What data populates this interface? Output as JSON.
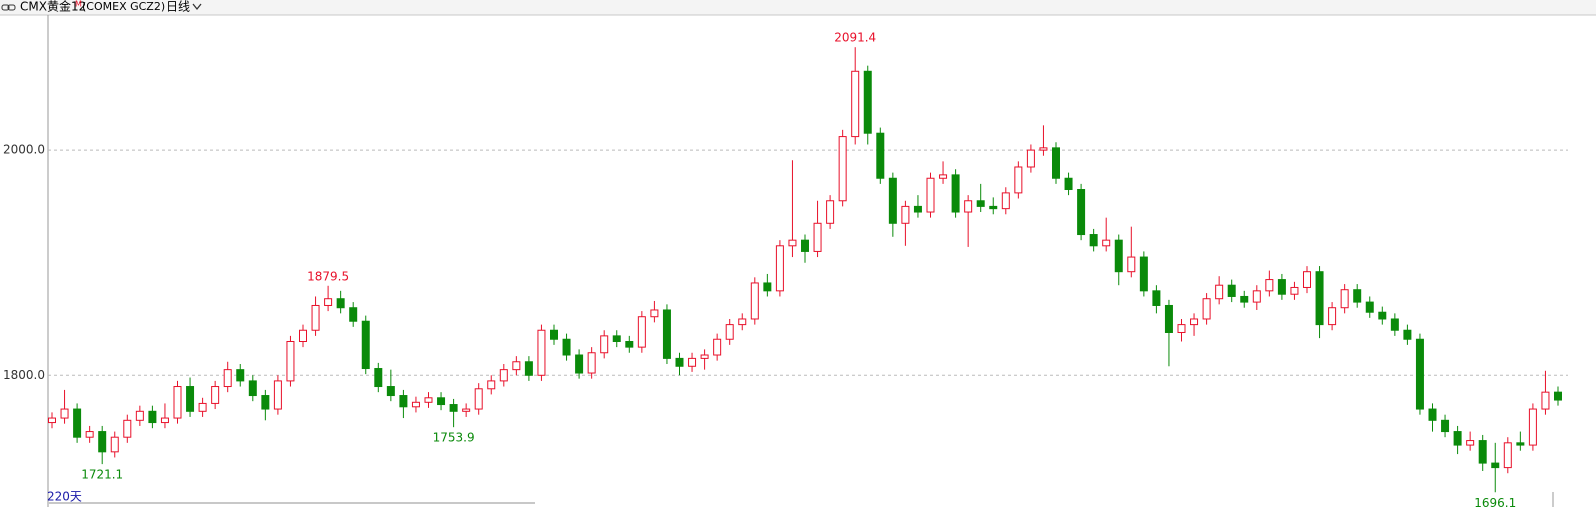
{
  "chart_data": {
    "type": "candlestick",
    "title": "CMX黄金12",
    "title_superscript": "M",
    "subtitle": "(COMEX GCZ2)",
    "period": "日线",
    "window_label": "220天",
    "up_color": "#e8102a",
    "down_color": "#0a8a0a",
    "grid": true,
    "ylim": [
      1683,
      2120
    ],
    "yticks": [
      {
        "value": 1800,
        "label": "1800.0"
      },
      {
        "value": 2000,
        "label": "2000.0"
      }
    ],
    "open": [
      1758,
      1762,
      1770,
      1745,
      1750,
      1732,
      1745,
      1760,
      1768,
      1758,
      1762,
      1790,
      1768,
      1775,
      1790,
      1805,
      1795,
      1782,
      1770,
      1795,
      1830,
      1840,
      1862,
      1868,
      1860,
      1848,
      1806,
      1790,
      1782,
      1772,
      1776,
      1780,
      1774,
      1768,
      1770,
      1788,
      1795,
      1805,
      1812,
      1800,
      1840,
      1832,
      1818,
      1802,
      1820,
      1835,
      1830,
      1825,
      1852,
      1858,
      1815,
      1808,
      1815,
      1818,
      1832,
      1845,
      1850,
      1882,
      1875,
      1915,
      1920,
      1910,
      1935,
      1955,
      2012,
      2070,
      2015,
      1975,
      1935,
      1950,
      1945,
      1975,
      1978,
      1945,
      1955,
      1950,
      1948,
      1962,
      1985,
      2000,
      2002,
      1975,
      1965,
      1925,
      1915,
      1920,
      1892,
      1905,
      1875,
      1862,
      1838,
      1845,
      1850,
      1868,
      1880,
      1870,
      1865,
      1875,
      1885,
      1872,
      1878,
      1892,
      1845,
      1860,
      1876,
      1865,
      1856,
      1850,
      1840,
      1832,
      1770,
      1760,
      1750,
      1738,
      1742,
      1722,
      1718,
      1740,
      1738,
      1770,
      1785
    ],
    "high": [
      1767,
      1787,
      1775,
      1755,
      1755,
      1750,
      1765,
      1773,
      1773,
      1775,
      1795,
      1798,
      1780,
      1795,
      1812,
      1810,
      1800,
      1787,
      1800,
      1835,
      1845,
      1870,
      1879.5,
      1875,
      1865,
      1853,
      1811,
      1805,
      1787,
      1781,
      1785,
      1785,
      1779,
      1775,
      1793,
      1800,
      1810,
      1817,
      1817,
      1845,
      1845,
      1837,
      1823,
      1825,
      1840,
      1840,
      1835,
      1857,
      1866,
      1863,
      1820,
      1820,
      1823,
      1837,
      1850,
      1855,
      1887,
      1890,
      1920,
      1991,
      1925,
      1955,
      1960,
      2018,
      2091.4,
      2075,
      2020,
      1980,
      1955,
      1960,
      1980,
      1990,
      1983,
      1960,
      1970,
      1958,
      1967,
      1990,
      2005,
      2022,
      2007,
      1980,
      1970,
      1930,
      1940,
      1925,
      1932,
      1910,
      1880,
      1867,
      1850,
      1855,
      1873,
      1888,
      1885,
      1875,
      1880,
      1893,
      1890,
      1883,
      1897,
      1897,
      1865,
      1881,
      1881,
      1870,
      1861,
      1855,
      1845,
      1837,
      1775,
      1765,
      1755,
      1750,
      1747,
      1740,
      1745,
      1750,
      1775,
      1804,
      1790
    ],
    "low": [
      1753,
      1757,
      1740,
      1740,
      1721.1,
      1727,
      1740,
      1755,
      1753,
      1753,
      1757,
      1763,
      1763,
      1770,
      1785,
      1790,
      1777,
      1760,
      1765,
      1790,
      1825,
      1835,
      1857,
      1855,
      1843,
      1801,
      1785,
      1777,
      1762,
      1767,
      1771,
      1769,
      1753.9,
      1763,
      1765,
      1783,
      1790,
      1800,
      1795,
      1795,
      1827,
      1813,
      1797,
      1797,
      1815,
      1825,
      1820,
      1820,
      1847,
      1810,
      1800,
      1803,
      1805,
      1813,
      1827,
      1840,
      1845,
      1870,
      1870,
      1905,
      1900,
      1905,
      1930,
      1950,
      2005,
      2005,
      1970,
      1923,
      1915,
      1940,
      1940,
      1970,
      1940,
      1914,
      1945,
      1943,
      1943,
      1957,
      1980,
      1995,
      1970,
      1960,
      1920,
      1910,
      1910,
      1880,
      1887,
      1870,
      1855,
      1808,
      1830,
      1835,
      1845,
      1863,
      1865,
      1860,
      1858,
      1870,
      1867,
      1867,
      1873,
      1833,
      1840,
      1855,
      1860,
      1851,
      1845,
      1835,
      1827,
      1765,
      1750,
      1745,
      1730,
      1733,
      1715,
      1696.1,
      1713,
      1733,
      1733,
      1765,
      1773
    ],
    "close": [
      1762,
      1770,
      1745,
      1750,
      1732,
      1745,
      1760,
      1768,
      1758,
      1762,
      1790,
      1768,
      1775,
      1790,
      1805,
      1795,
      1782,
      1770,
      1795,
      1830,
      1840,
      1862,
      1868,
      1860,
      1848,
      1806,
      1790,
      1782,
      1772,
      1776,
      1780,
      1774,
      1768,
      1770,
      1788,
      1795,
      1805,
      1812,
      1800,
      1840,
      1832,
      1818,
      1802,
      1820,
      1835,
      1830,
      1825,
      1852,
      1858,
      1815,
      1808,
      1815,
      1818,
      1832,
      1845,
      1850,
      1882,
      1875,
      1915,
      1920,
      1910,
      1935,
      1955,
      2012,
      2070,
      2015,
      1975,
      1935,
      1950,
      1945,
      1975,
      1978,
      1945,
      1955,
      1950,
      1948,
      1962,
      1985,
      2000,
      2002,
      1975,
      1965,
      1925,
      1915,
      1920,
      1892,
      1905,
      1875,
      1862,
      1838,
      1845,
      1850,
      1868,
      1880,
      1870,
      1865,
      1875,
      1885,
      1872,
      1878,
      1892,
      1845,
      1860,
      1876,
      1865,
      1856,
      1850,
      1840,
      1832,
      1770,
      1760,
      1750,
      1738,
      1742,
      1722,
      1718,
      1740,
      1738,
      1770,
      1785,
      1778
    ]
  }
}
